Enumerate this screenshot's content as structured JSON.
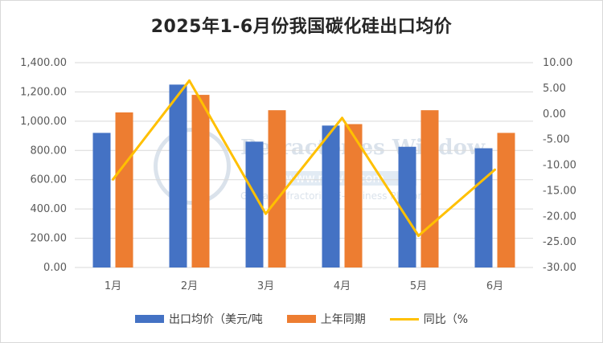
{
  "title": "2025年1-6月份我国碳化硅出口均价",
  "watermark": {
    "main": "Refractories Window",
    "url": "www.refwin.com",
    "sub": "Global Refractories E-Business Platform"
  },
  "legend": {
    "series1": "出口均价（美元/吨",
    "series2": "上年同期",
    "series3": "同比（%"
  },
  "colors": {
    "series1": "#4472c4",
    "series2": "#ed7d31",
    "series3": "#ffc000",
    "grid": "#d9d9d9"
  },
  "chart_data": {
    "type": "bar",
    "title": "2025年1-6月份我国碳化硅出口均价",
    "categories": [
      "1月",
      "2月",
      "3月",
      "4月",
      "5月",
      "6月"
    ],
    "series": [
      {
        "name": "出口均价（美元/吨",
        "type": "bar",
        "axis": "left",
        "values": [
          920,
          1250,
          860,
          970,
          825,
          815
        ]
      },
      {
        "name": "上年同期",
        "type": "bar",
        "axis": "left",
        "values": [
          1060,
          1180,
          1075,
          980,
          1075,
          920
        ]
      },
      {
        "name": "同比（%",
        "type": "line",
        "axis": "right",
        "values": [
          -12.8,
          6.5,
          -19.5,
          -0.8,
          -23.8,
          -10.9
        ]
      }
    ],
    "y_left": {
      "range": [
        0,
        1400
      ],
      "step": 200,
      "tick_labels": [
        "0.00",
        "200.00",
        "400.00",
        "600.00",
        "800.00",
        "1,000.00",
        "1,200.00",
        "1,400.00"
      ]
    },
    "y_right": {
      "range": [
        -30,
        10
      ],
      "step": 5,
      "tick_labels": [
        "-30.00",
        "-25.00",
        "-20.00",
        "-15.00",
        "-10.00",
        "-5.00",
        "0.00",
        "5.00",
        "10.00"
      ]
    },
    "grid": true,
    "legend_position": "bottom"
  }
}
